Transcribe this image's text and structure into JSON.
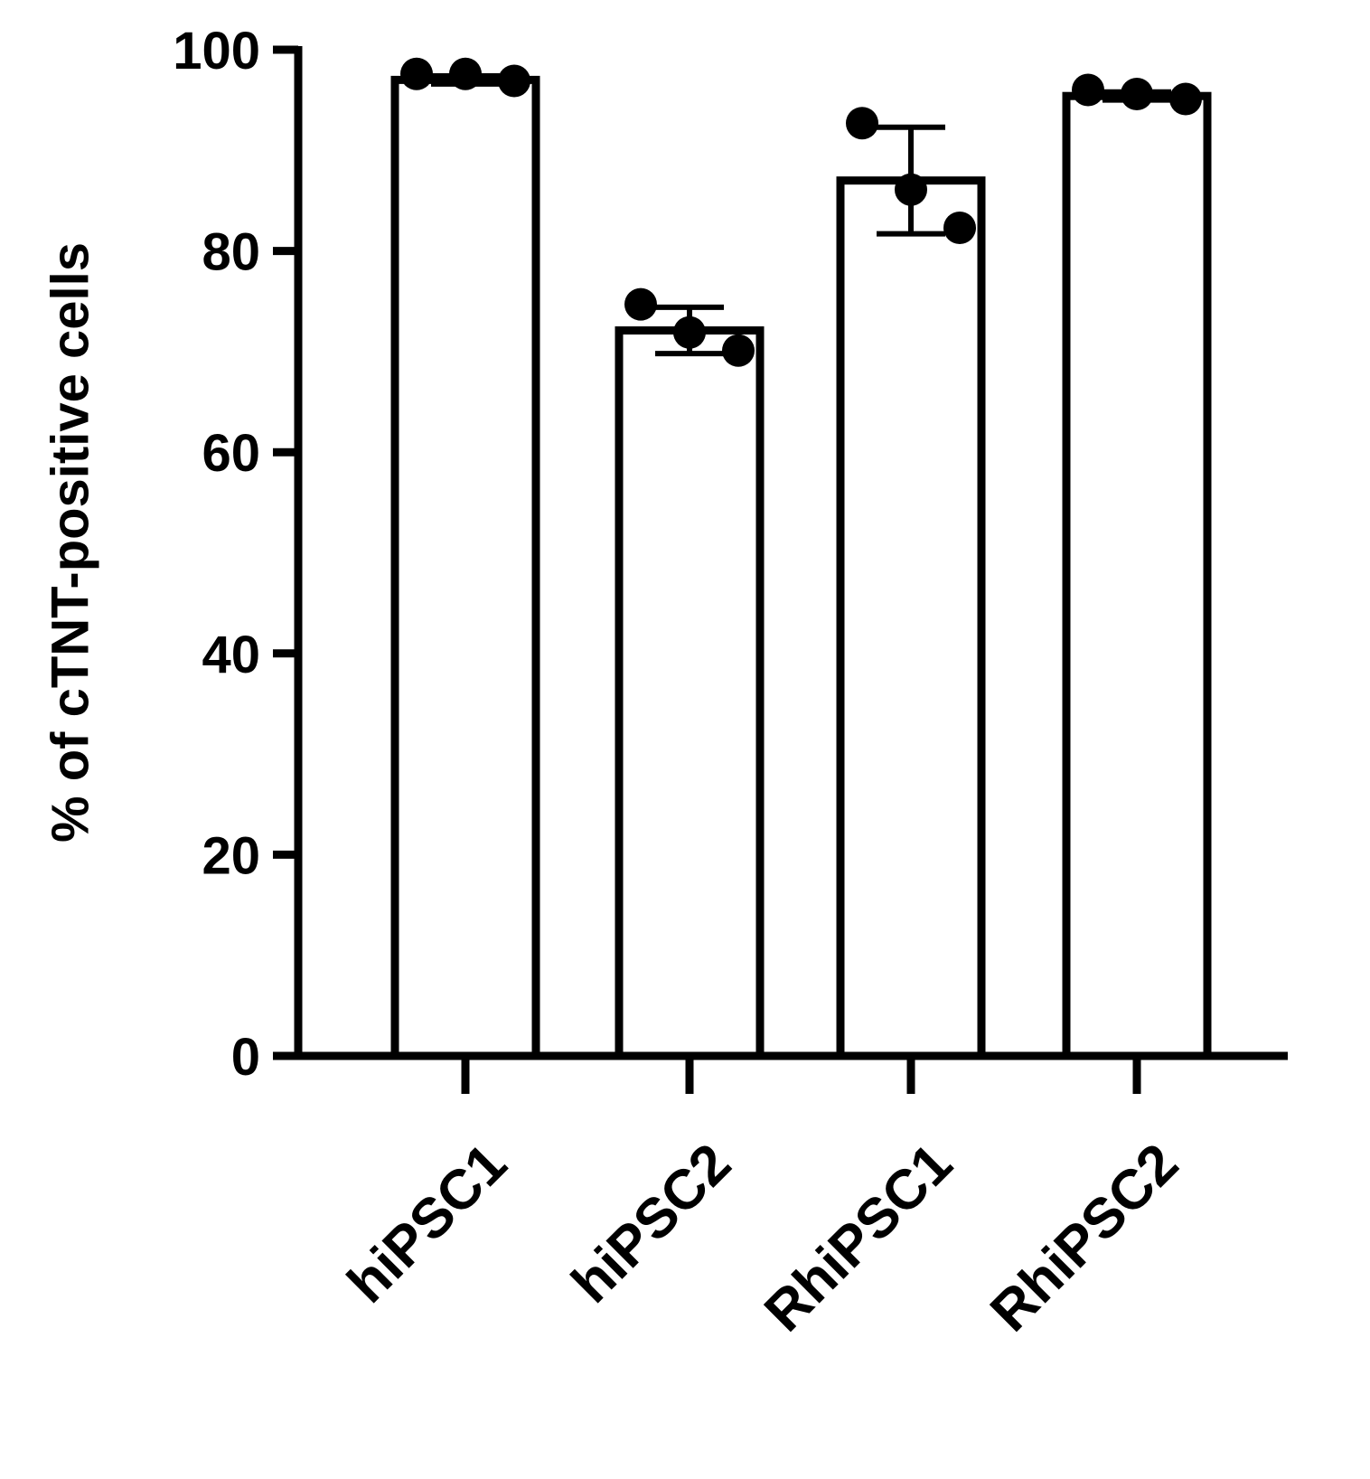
{
  "chart_data": {
    "type": "bar",
    "y_label": "% of cTNT-positive cells",
    "categories": [
      "hiPSC1",
      "hiPSC2",
      "RhiPSC1",
      "RhiPSC2"
    ],
    "values": [
      97.0,
      72.1,
      87.0,
      95.4
    ],
    "errors": [
      0.4,
      2.3,
      5.3,
      0.4
    ],
    "points": [
      [
        97.6,
        97.6,
        96.9
      ],
      [
        74.7,
        71.9,
        70.1
      ],
      [
        92.7,
        86.1,
        82.3
      ],
      [
        96.0,
        95.6,
        95.1
      ]
    ],
    "color": "#ffffff",
    "ylim": [
      0,
      100
    ],
    "yticks": [
      0,
      20,
      40,
      60,
      80,
      100
    ]
  }
}
